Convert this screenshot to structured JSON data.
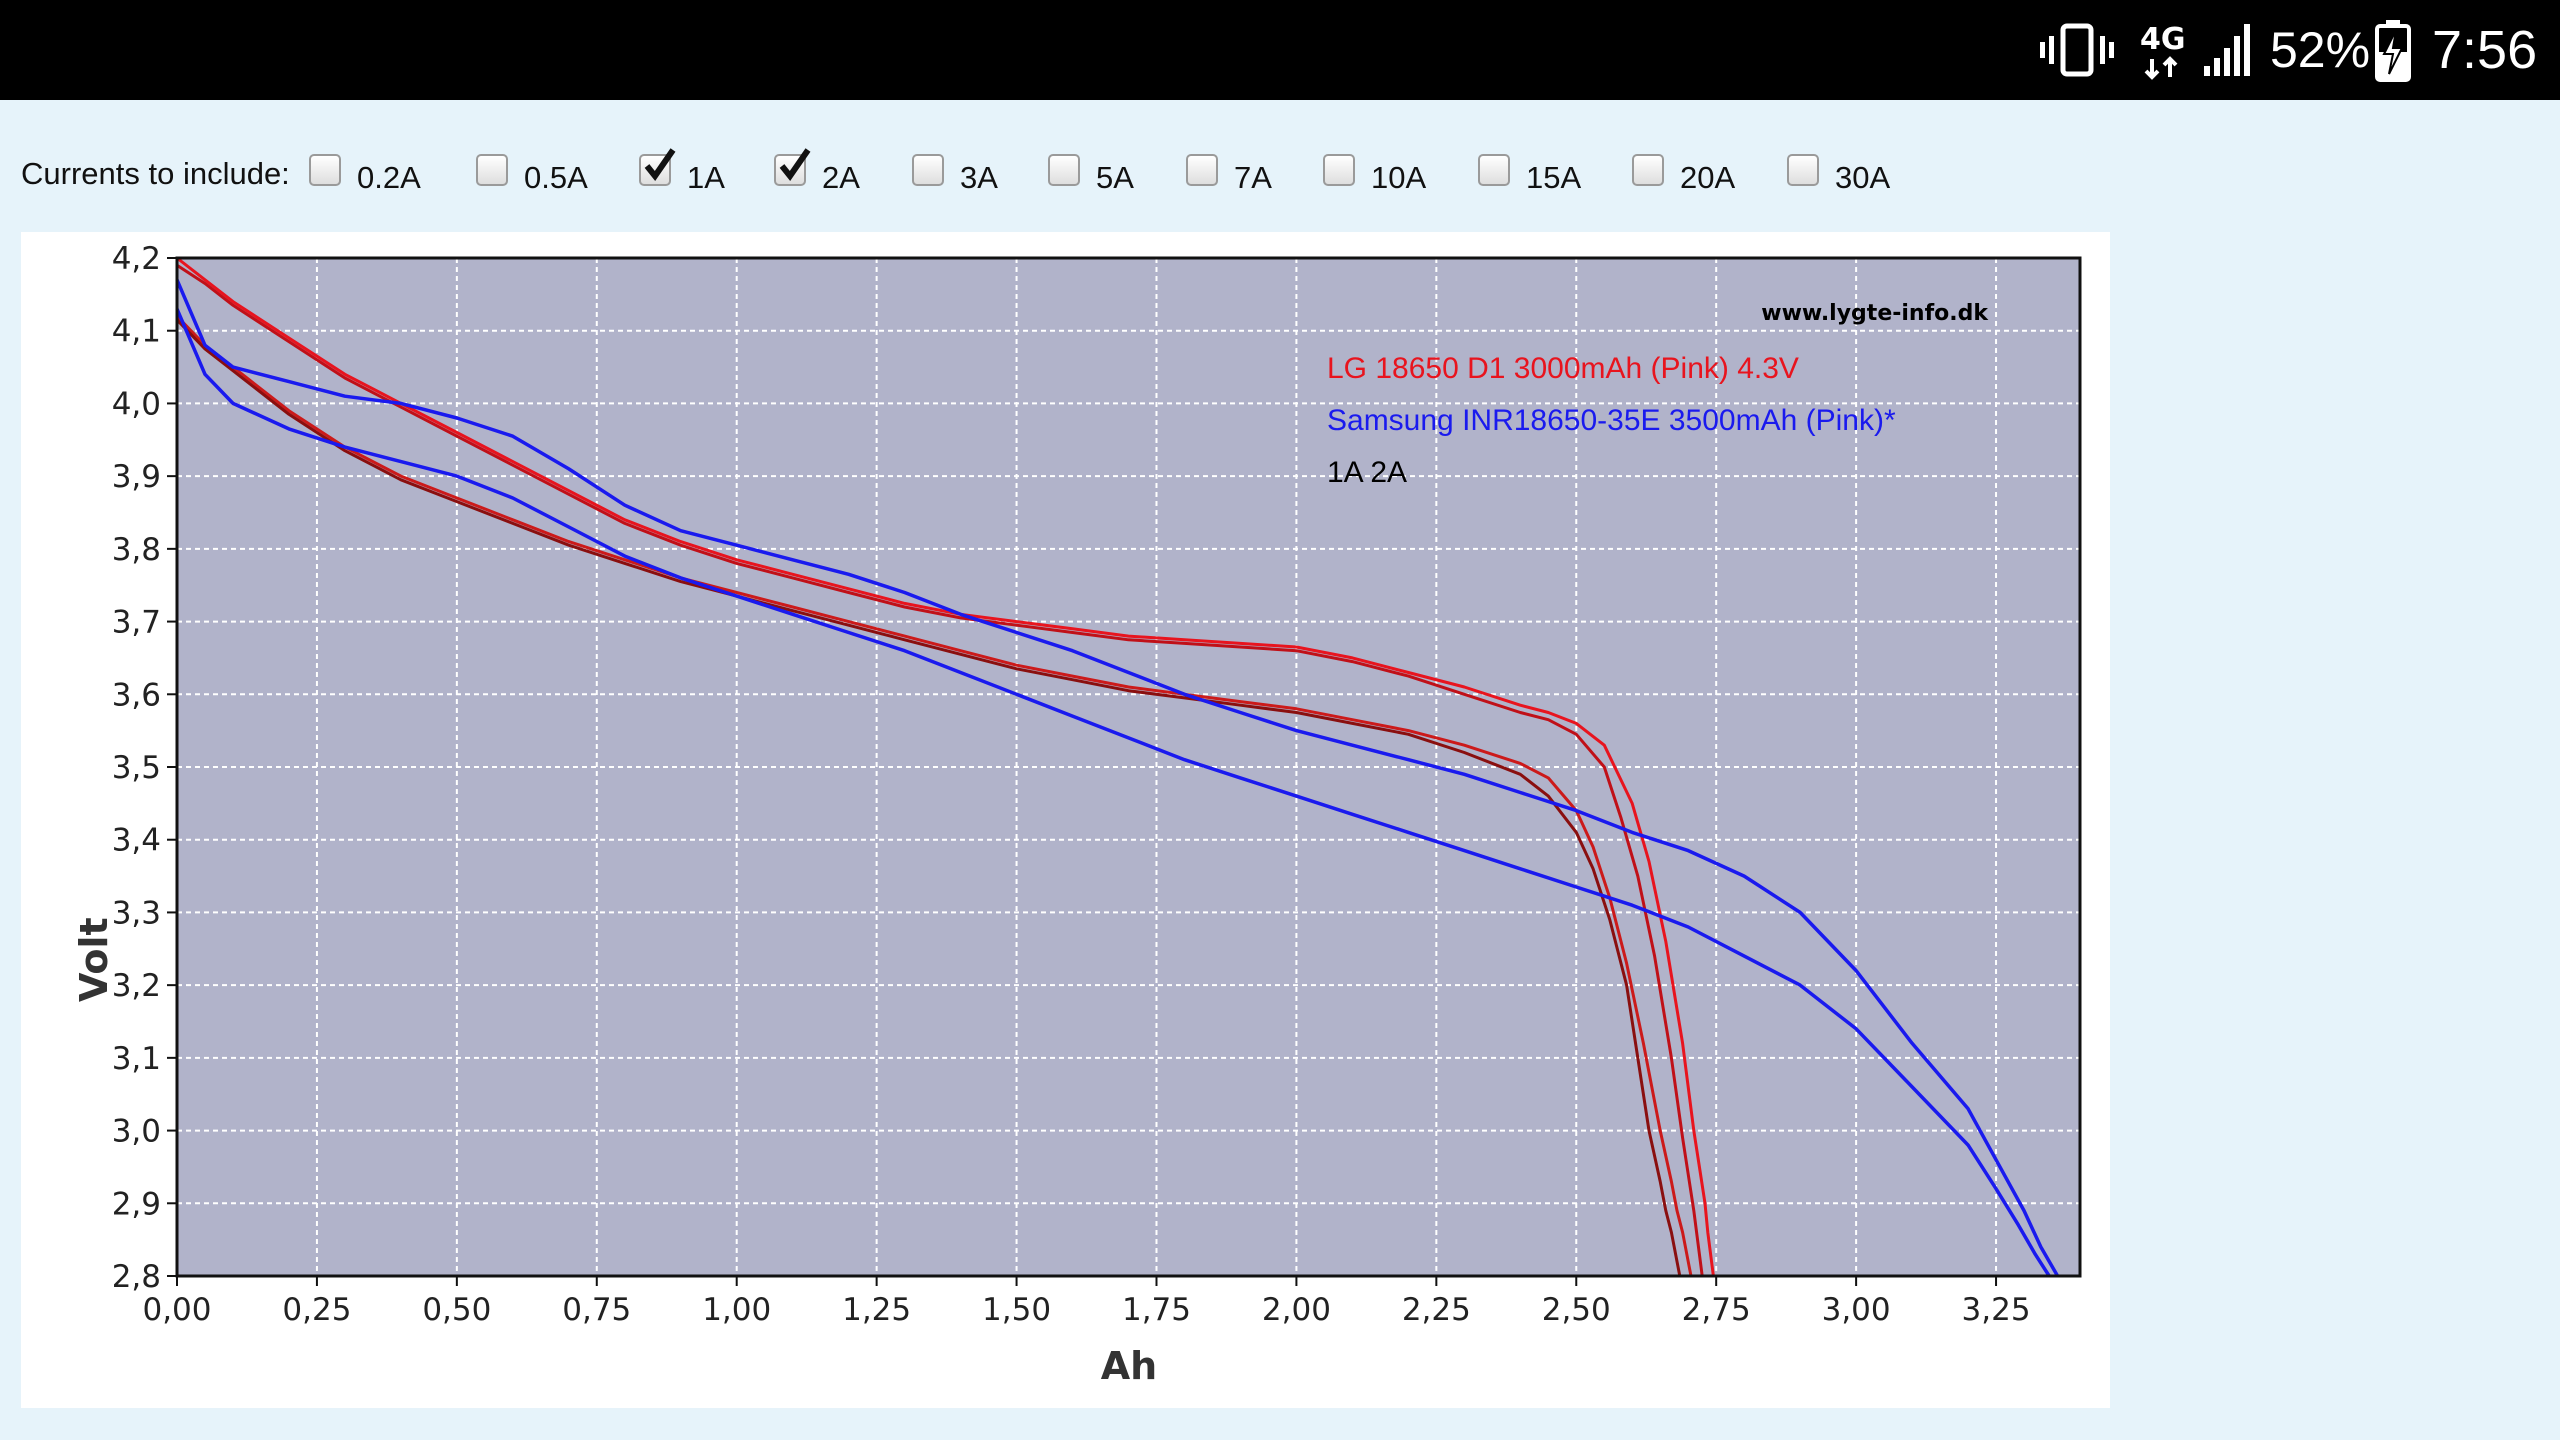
{
  "status_bar": {
    "network": "4G",
    "battery_percent": "52%",
    "time": "7:56",
    "icons": [
      "vibrate-icon",
      "lte-icon",
      "signal-icon",
      "battery-charging-icon"
    ]
  },
  "filter": {
    "label": "Currents to include:",
    "options": [
      {
        "label": "0.2A",
        "checked": false
      },
      {
        "label": "0.5A",
        "checked": false
      },
      {
        "label": "1A",
        "checked": true
      },
      {
        "label": "2A",
        "checked": true
      },
      {
        "label": "3A",
        "checked": false
      },
      {
        "label": "5A",
        "checked": false
      },
      {
        "label": "7A",
        "checked": false
      },
      {
        "label": "10A",
        "checked": false
      },
      {
        "label": "15A",
        "checked": false
      },
      {
        "label": "20A",
        "checked": false
      },
      {
        "label": "30A",
        "checked": false
      }
    ]
  },
  "chart_data": {
    "type": "line",
    "watermark": "www.lygte-info.dk",
    "xlabel": "Ah",
    "ylabel": "Volt",
    "xlim": [
      0,
      3.4
    ],
    "ylim": [
      2.8,
      4.2
    ],
    "grid": true,
    "x_ticks": [
      "0,00",
      "0,25",
      "0,50",
      "0,75",
      "1,00",
      "1,25",
      "1,50",
      "1,75",
      "2,00",
      "2,25",
      "2,50",
      "2,75",
      "3,00",
      "3,25"
    ],
    "y_ticks": [
      "2,8",
      "2,9",
      "3,0",
      "3,1",
      "3,2",
      "3,3",
      "3,4",
      "3,5",
      "3,6",
      "3,7",
      "3,8",
      "3,9",
      "4,0",
      "4,1",
      "4,2"
    ],
    "legend": [
      {
        "text": "LG 18650 D1 3000mAh (Pink) 4.3V",
        "color": "#e8141e"
      },
      {
        "text": "Samsung INR18650-35E 3500mAh (Pink)*",
        "color": "#1a1aee"
      },
      {
        "text": "1A 2A",
        "color": "#000000"
      }
    ],
    "legend_position": "top-right",
    "colors": {
      "plot_bg": "#b1b3ca",
      "lg_1a": "#e8141e",
      "lg_1a_b": "#c01018",
      "lg_2a": "#cc1a1a",
      "lg_2a_b": "#8a0f0f",
      "samsung": "#1a1aee"
    },
    "series": [
      {
        "color_key": "lg_1a",
        "x": [
          0.0,
          0.05,
          0.1,
          0.2,
          0.3,
          0.4,
          0.5,
          0.6,
          0.7,
          0.8,
          0.9,
          1.0,
          1.1,
          1.2,
          1.3,
          1.4,
          1.5,
          1.6,
          1.7,
          1.8,
          1.9,
          2.0,
          2.1,
          2.2,
          2.3,
          2.4,
          2.45,
          2.5,
          2.55,
          2.6,
          2.63,
          2.66,
          2.69,
          2.71,
          2.72,
          2.73,
          2.735,
          2.74,
          2.745
        ],
        "y": [
          4.2,
          4.17,
          4.14,
          4.09,
          4.04,
          4.0,
          3.96,
          3.92,
          3.88,
          3.84,
          3.81,
          3.785,
          3.765,
          3.745,
          3.725,
          3.71,
          3.7,
          3.69,
          3.68,
          3.675,
          3.67,
          3.665,
          3.65,
          3.63,
          3.61,
          3.585,
          3.575,
          3.56,
          3.53,
          3.45,
          3.37,
          3.26,
          3.12,
          3.0,
          2.95,
          2.9,
          2.86,
          2.83,
          2.8
        ]
      },
      {
        "color_key": "lg_1a_b",
        "x": [
          0.0,
          0.05,
          0.1,
          0.2,
          0.3,
          0.4,
          0.5,
          0.6,
          0.7,
          0.8,
          0.9,
          1.0,
          1.1,
          1.2,
          1.3,
          1.4,
          1.5,
          1.6,
          1.7,
          1.8,
          1.9,
          2.0,
          2.1,
          2.2,
          2.3,
          2.4,
          2.45,
          2.5,
          2.55,
          2.58,
          2.61,
          2.64,
          2.67,
          2.69,
          2.7,
          2.71,
          2.715,
          2.72,
          2.725
        ],
        "y": [
          4.19,
          4.165,
          4.135,
          4.085,
          4.035,
          3.995,
          3.955,
          3.915,
          3.875,
          3.835,
          3.805,
          3.78,
          3.76,
          3.74,
          3.72,
          3.705,
          3.695,
          3.685,
          3.675,
          3.67,
          3.665,
          3.66,
          3.645,
          3.625,
          3.6,
          3.575,
          3.565,
          3.545,
          3.5,
          3.43,
          3.35,
          3.24,
          3.1,
          2.99,
          2.94,
          2.89,
          2.86,
          2.83,
          2.8
        ]
      },
      {
        "color_key": "lg_2a",
        "x": [
          0.0,
          0.05,
          0.1,
          0.2,
          0.3,
          0.4,
          0.5,
          0.6,
          0.7,
          0.8,
          0.9,
          1.0,
          1.1,
          1.2,
          1.3,
          1.4,
          1.5,
          1.6,
          1.7,
          1.8,
          1.9,
          2.0,
          2.1,
          2.2,
          2.3,
          2.4,
          2.45,
          2.5,
          2.53,
          2.56,
          2.59,
          2.62,
          2.65,
          2.67,
          2.68,
          2.69,
          2.695,
          2.7,
          2.705
        ],
        "y": [
          4.12,
          4.08,
          4.05,
          3.99,
          3.94,
          3.9,
          3.87,
          3.84,
          3.81,
          3.785,
          3.76,
          3.74,
          3.72,
          3.7,
          3.68,
          3.66,
          3.64,
          3.625,
          3.61,
          3.6,
          3.59,
          3.58,
          3.565,
          3.55,
          3.53,
          3.505,
          3.485,
          3.44,
          3.39,
          3.32,
          3.23,
          3.12,
          3.0,
          2.93,
          2.89,
          2.86,
          2.84,
          2.82,
          2.8
        ]
      },
      {
        "color_key": "lg_2a_b",
        "x": [
          0.0,
          0.05,
          0.1,
          0.2,
          0.3,
          0.4,
          0.5,
          0.6,
          0.7,
          0.8,
          0.9,
          1.0,
          1.1,
          1.2,
          1.3,
          1.4,
          1.5,
          1.6,
          1.7,
          1.8,
          1.9,
          2.0,
          2.1,
          2.2,
          2.3,
          2.4,
          2.45,
          2.5,
          2.53,
          2.56,
          2.59,
          2.61,
          2.63,
          2.65,
          2.66,
          2.67,
          2.675,
          2.68,
          2.685
        ],
        "y": [
          4.115,
          4.075,
          4.045,
          3.985,
          3.935,
          3.895,
          3.865,
          3.835,
          3.805,
          3.78,
          3.755,
          3.735,
          3.715,
          3.695,
          3.675,
          3.655,
          3.635,
          3.62,
          3.605,
          3.595,
          3.585,
          3.575,
          3.56,
          3.545,
          3.52,
          3.49,
          3.46,
          3.41,
          3.36,
          3.29,
          3.2,
          3.1,
          3.0,
          2.93,
          2.89,
          2.86,
          2.84,
          2.82,
          2.8
        ]
      },
      {
        "color_key": "samsung",
        "x": [
          0.0,
          0.05,
          0.1,
          0.2,
          0.3,
          0.4,
          0.5,
          0.6,
          0.7,
          0.8,
          0.9,
          1.0,
          1.1,
          1.2,
          1.3,
          1.4,
          1.5,
          1.6,
          1.7,
          1.8,
          1.9,
          2.0,
          2.1,
          2.2,
          2.3,
          2.4,
          2.5,
          2.6,
          2.7,
          2.8,
          2.9,
          3.0,
          3.1,
          3.2,
          3.25,
          3.3,
          3.33,
          3.36
        ],
        "y": [
          4.17,
          4.08,
          4.05,
          4.03,
          4.01,
          4.0,
          3.98,
          3.955,
          3.91,
          3.86,
          3.825,
          3.805,
          3.785,
          3.765,
          3.74,
          3.71,
          3.685,
          3.66,
          3.63,
          3.6,
          3.575,
          3.55,
          3.53,
          3.51,
          3.49,
          3.465,
          3.44,
          3.41,
          3.385,
          3.35,
          3.3,
          3.22,
          3.12,
          3.03,
          2.96,
          2.89,
          2.84,
          2.8
        ]
      },
      {
        "color_key": "samsung",
        "x": [
          0.0,
          0.05,
          0.1,
          0.2,
          0.3,
          0.4,
          0.5,
          0.6,
          0.7,
          0.8,
          0.9,
          1.0,
          1.1,
          1.2,
          1.3,
          1.4,
          1.5,
          1.6,
          1.7,
          1.8,
          1.9,
          2.0,
          2.1,
          2.2,
          2.3,
          2.4,
          2.5,
          2.6,
          2.7,
          2.8,
          2.9,
          3.0,
          3.1,
          3.2,
          3.25,
          3.29,
          3.32,
          3.345
        ],
        "y": [
          4.13,
          4.04,
          4.0,
          3.965,
          3.94,
          3.92,
          3.9,
          3.87,
          3.83,
          3.79,
          3.76,
          3.735,
          3.71,
          3.685,
          3.66,
          3.63,
          3.6,
          3.57,
          3.54,
          3.51,
          3.485,
          3.46,
          3.435,
          3.41,
          3.385,
          3.36,
          3.335,
          3.31,
          3.28,
          3.24,
          3.2,
          3.14,
          3.06,
          2.98,
          2.92,
          2.87,
          2.83,
          2.8
        ]
      }
    ]
  }
}
